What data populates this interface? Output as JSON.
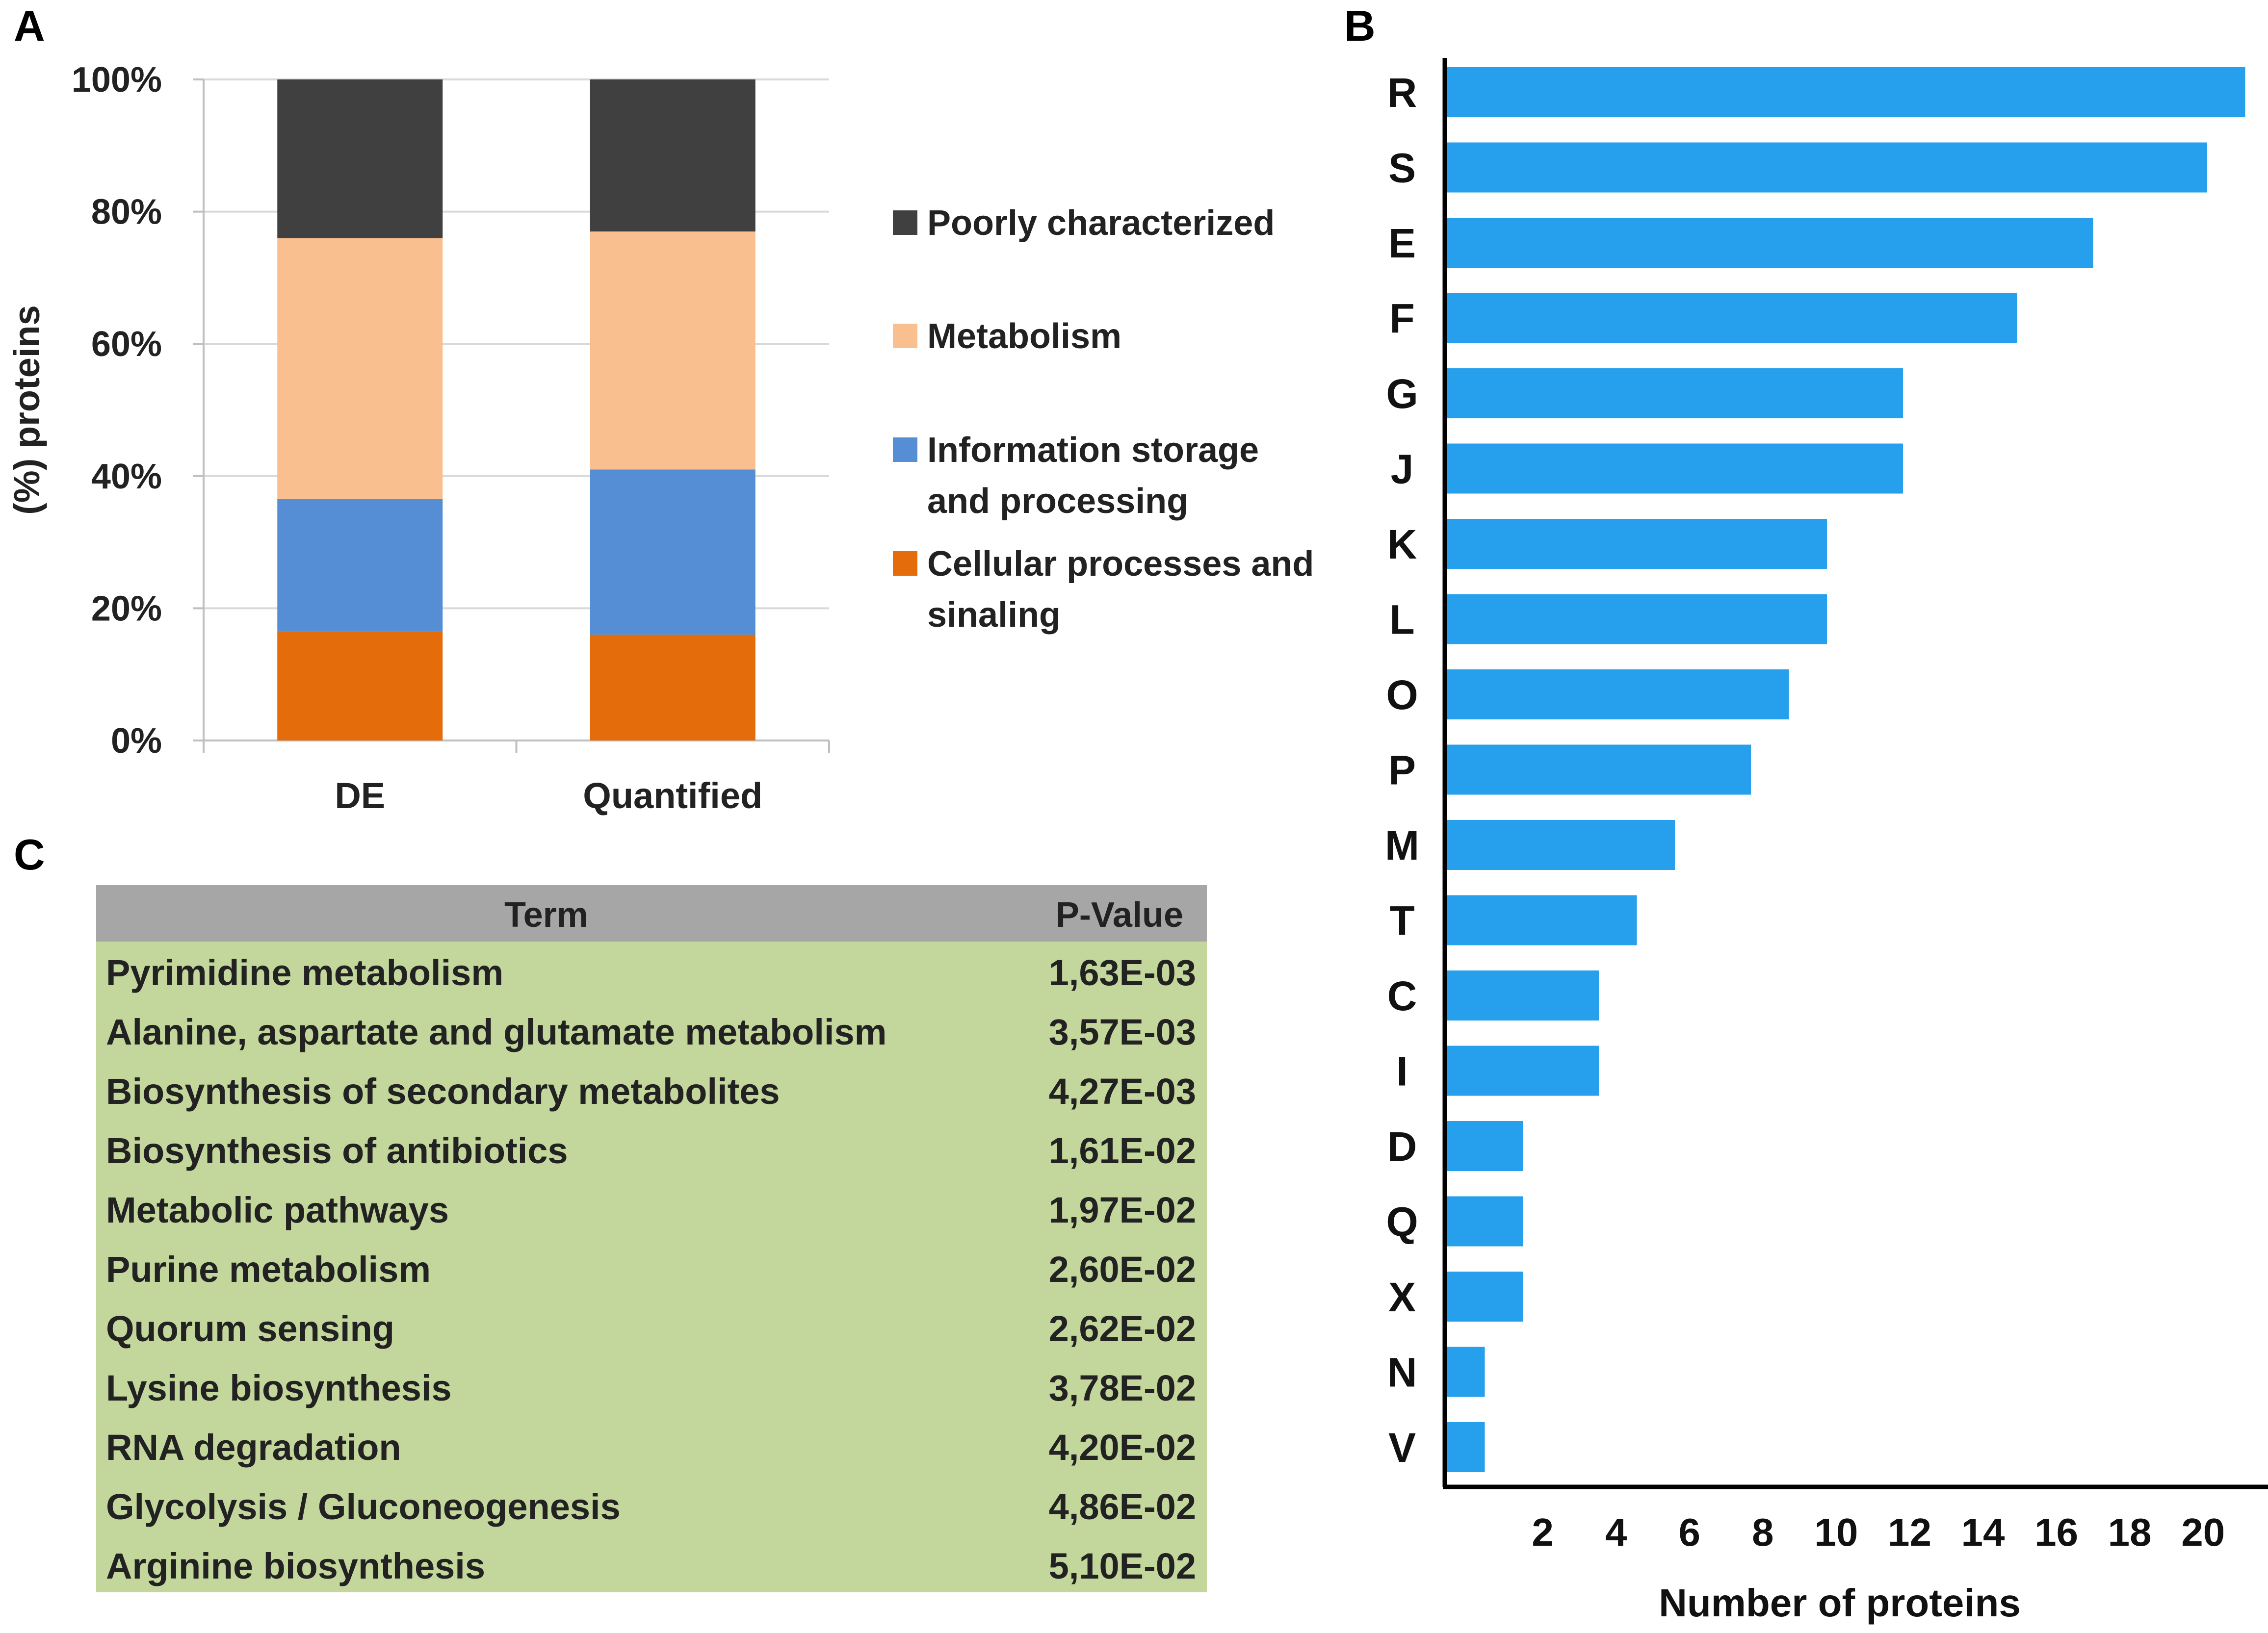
{
  "panel_labels": {
    "a": "A",
    "b": "B",
    "c": "C"
  },
  "colors": {
    "poorly": "#404040",
    "metabolism": "#f9bf8f",
    "information": "#558ed5",
    "cellular": "#e46c0a",
    "hbar": "#26a0ec",
    "table_header": "#a6a6a6",
    "table_body": "#c3d69b"
  },
  "chart_data": [
    {
      "id": "A",
      "type": "bar",
      "stacked": true,
      "percent": true,
      "ylabel": "(%) proteins",
      "xlabel": "",
      "ylim": [
        0,
        100
      ],
      "yticks": [
        "0%",
        "20%",
        "40%",
        "60%",
        "80%",
        "100%"
      ],
      "categories": [
        "DE",
        "Quantified"
      ],
      "series": [
        {
          "name": "Cellular processes and sinaling",
          "values": [
            16.5,
            16
          ],
          "color_key": "cellular"
        },
        {
          "name": "Information storage and processing",
          "values": [
            20,
            25
          ],
          "color_key": "information"
        },
        {
          "name": "Metabolism",
          "values": [
            39.5,
            36
          ],
          "color_key": "metabolism"
        },
        {
          "name": "Poorly characterized",
          "values": [
            24,
            23
          ],
          "color_key": "poorly"
        }
      ],
      "legend": {
        "position": "right",
        "items": [
          {
            "lines": [
              "Poorly characterized"
            ],
            "color_key": "poorly"
          },
          {
            "lines": [
              "Metabolism"
            ],
            "color_key": "metabolism"
          },
          {
            "lines": [
              "Information storage",
              "and processing"
            ],
            "color_key": "information"
          },
          {
            "lines": [
              "Cellular processes and",
              "sinaling"
            ],
            "color_key": "cellular"
          }
        ]
      }
    },
    {
      "id": "B",
      "type": "bar",
      "orientation": "horizontal",
      "xlabel": "Number of proteins",
      "ylabel": "",
      "xlim": [
        0,
        21
      ],
      "xticks": [
        2,
        4,
        6,
        8,
        10,
        12,
        14,
        16,
        18,
        20
      ],
      "categories": [
        "R",
        "S",
        "E",
        "F",
        "G",
        "J",
        "K",
        "L",
        "O",
        "P",
        "M",
        "T",
        "C",
        "I",
        "D",
        "Q",
        "X",
        "N",
        "V"
      ],
      "values": [
        21,
        20,
        17,
        15,
        12,
        12,
        10,
        10,
        9,
        8,
        6,
        5,
        4,
        4,
        2,
        2,
        2,
        1,
        1
      ]
    },
    {
      "id": "C",
      "type": "table",
      "columns": [
        "Term",
        "P-Value"
      ],
      "rows": [
        {
          "term": "Pyrimidine metabolism",
          "pvalue": "1,63E-03"
        },
        {
          "term": "Alanine, aspartate and glutamate metabolism",
          "pvalue": "3,57E-03"
        },
        {
          "term": "Biosynthesis of secondary metabolites",
          "pvalue": "4,27E-03"
        },
        {
          "term": "Biosynthesis of antibiotics",
          "pvalue": "1,61E-02"
        },
        {
          "term": "Metabolic pathways",
          "pvalue": "1,97E-02"
        },
        {
          "term": "Purine metabolism",
          "pvalue": "2,60E-02"
        },
        {
          "term": "Quorum sensing",
          "pvalue": "2,62E-02"
        },
        {
          "term": "Lysine biosynthesis",
          "pvalue": "3,78E-02"
        },
        {
          "term": "RNA degradation",
          "pvalue": "4,20E-02"
        },
        {
          "term": "Glycolysis / Gluconeogenesis",
          "pvalue": "4,86E-02"
        },
        {
          "term": "Arginine biosynthesis",
          "pvalue": "5,10E-02"
        }
      ]
    }
  ]
}
